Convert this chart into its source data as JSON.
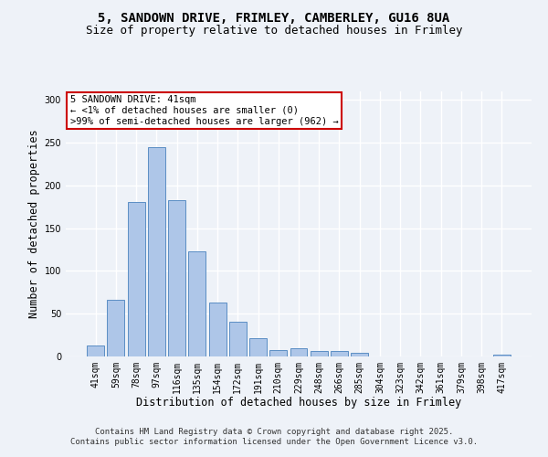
{
  "title_line1": "5, SANDOWN DRIVE, FRIMLEY, CAMBERLEY, GU16 8UA",
  "title_line2": "Size of property relative to detached houses in Frimley",
  "xlabel": "Distribution of detached houses by size in Frimley",
  "ylabel": "Number of detached properties",
  "categories": [
    "41sqm",
    "59sqm",
    "78sqm",
    "97sqm",
    "116sqm",
    "135sqm",
    "154sqm",
    "172sqm",
    "191sqm",
    "210sqm",
    "229sqm",
    "248sqm",
    "266sqm",
    "285sqm",
    "304sqm",
    "323sqm",
    "342sqm",
    "361sqm",
    "379sqm",
    "398sqm",
    "417sqm"
  ],
  "values": [
    13,
    66,
    181,
    245,
    183,
    123,
    63,
    41,
    21,
    7,
    10,
    6,
    6,
    4,
    0,
    0,
    0,
    0,
    0,
    0,
    2
  ],
  "bar_color": "#aec6e8",
  "bar_edge_color": "#5b8ec4",
  "annotation_text": "5 SANDOWN DRIVE: 41sqm\n← <1% of detached houses are smaller (0)\n>99% of semi-detached houses are larger (962) →",
  "annotation_box_color": "#ffffff",
  "annotation_box_edge_color": "#cc0000",
  "ylim": [
    0,
    310
  ],
  "yticks": [
    0,
    50,
    100,
    150,
    200,
    250,
    300
  ],
  "footer_line1": "Contains HM Land Registry data © Crown copyright and database right 2025.",
  "footer_line2": "Contains public sector information licensed under the Open Government Licence v3.0.",
  "background_color": "#eef2f8",
  "grid_color": "#ffffff",
  "title_fontsize": 10,
  "subtitle_fontsize": 9,
  "axis_label_fontsize": 8.5,
  "tick_fontsize": 7,
  "annotation_fontsize": 7.5,
  "footer_fontsize": 6.5
}
